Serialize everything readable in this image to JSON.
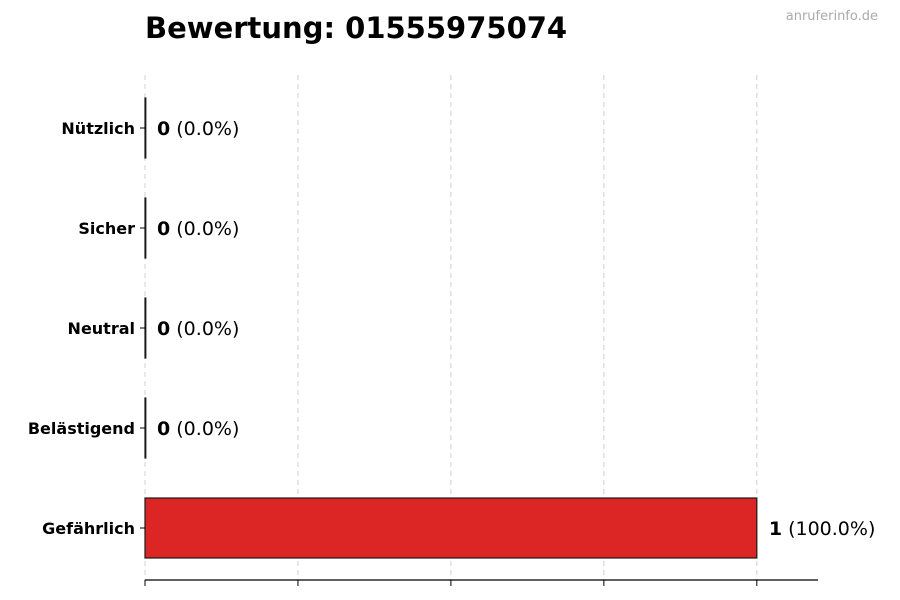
{
  "chart_data": {
    "type": "bar",
    "orientation": "horizontal",
    "title": "Bewertung: 01555975074",
    "watermark": "anruferinfo.de",
    "categories": [
      "Nützlich",
      "Sicher",
      "Neutral",
      "Belästigend",
      "Gefährlich"
    ],
    "values": [
      0,
      0,
      0,
      0,
      1
    ],
    "value_labels": [
      "0",
      "0",
      "0",
      "0",
      "1"
    ],
    "percent_labels": [
      "(0.0%)",
      "(0.0%)",
      "(0.0%)",
      "(0.0%)",
      "(100.0%)"
    ],
    "xlim": [
      0,
      1.1
    ],
    "xticks": [
      0,
      0.25,
      0.5,
      0.75,
      1.0
    ],
    "xtick_labels_shown": false,
    "grid": "x, dashed",
    "bar_color": "#dc2626",
    "bar_edge_color": "#1a1a1a",
    "grid_color": "#d0d0d0"
  }
}
